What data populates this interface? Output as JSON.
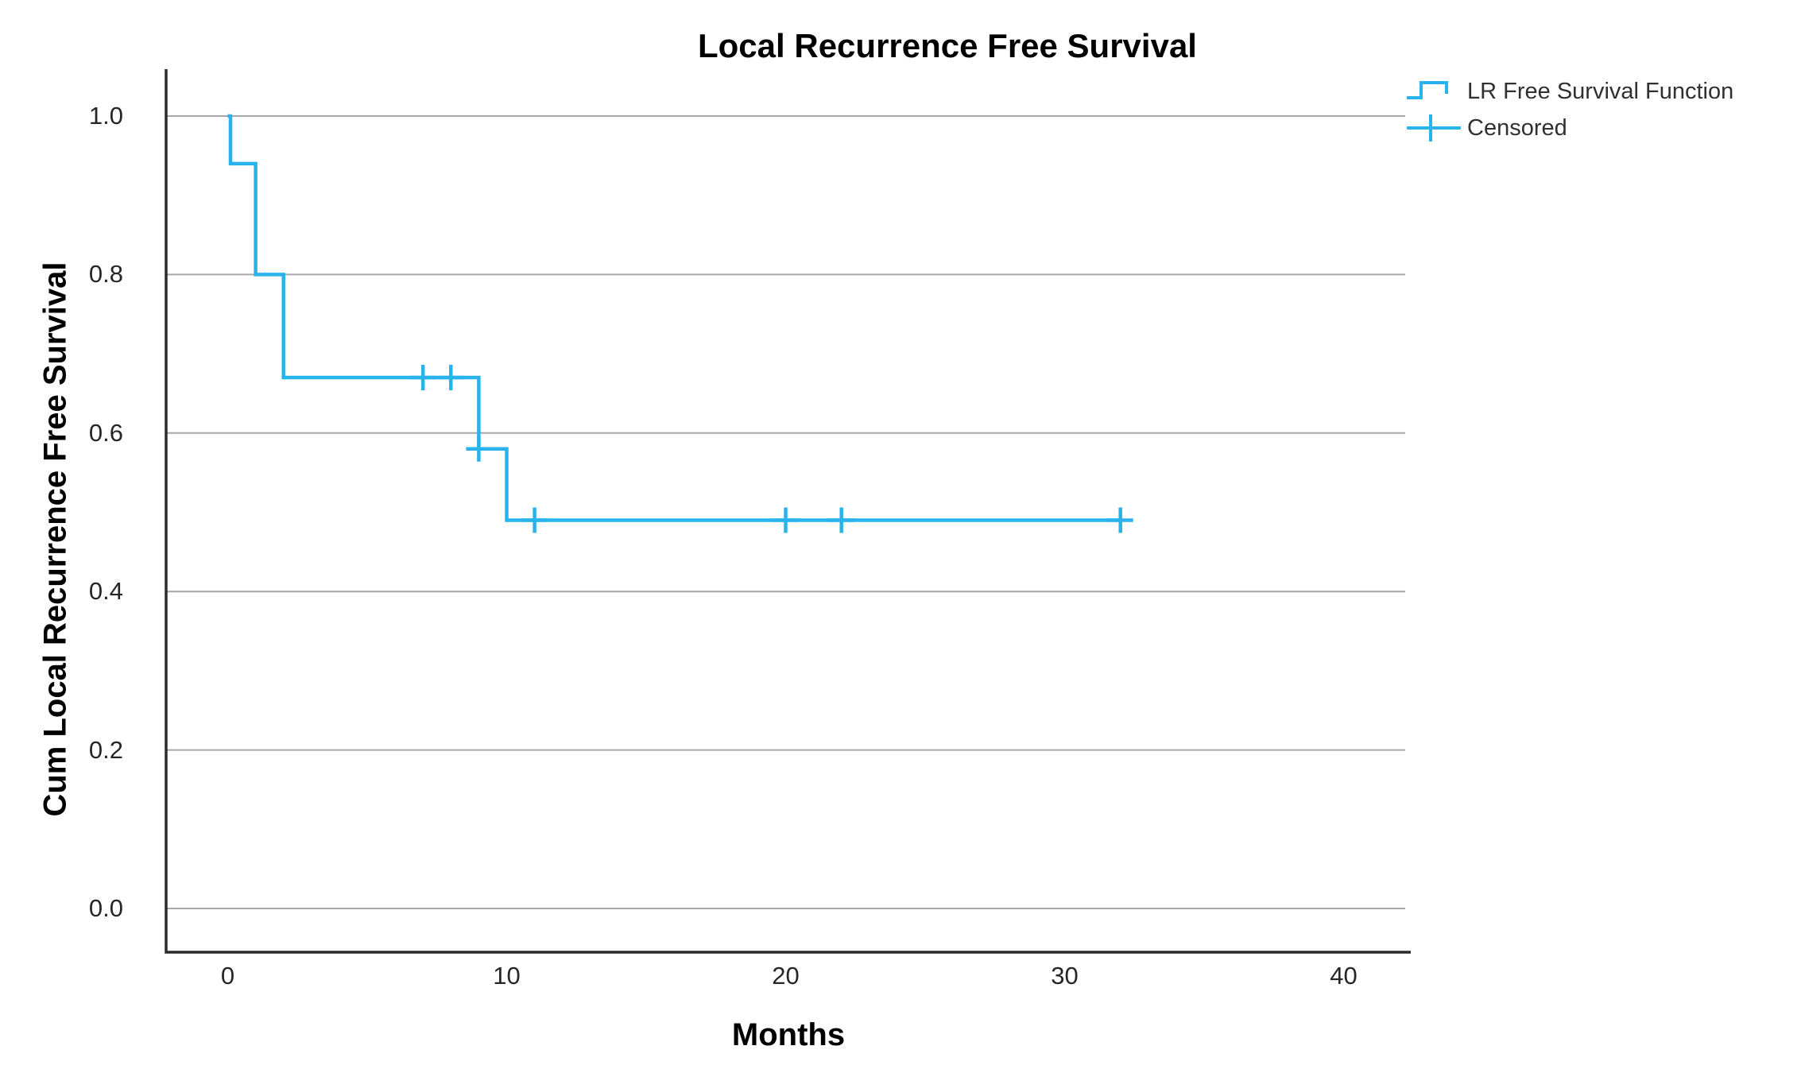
{
  "figure": {
    "background": "#ffffff"
  },
  "chart_data": {
    "type": "line",
    "subtype": "kaplan-meier-step",
    "title": "Local Recurrence Free Survival",
    "xlabel": "Months",
    "ylabel": "Cum Local Recurrence Free Survival",
    "grid": "horizontal",
    "legend_position": "top-right-outside",
    "xlim": [
      -2.2,
      42.4
    ],
    "ylim": [
      -0.055,
      1.06
    ],
    "xticks": [
      {
        "value": 0,
        "label": "0"
      },
      {
        "value": 10,
        "label": "10"
      },
      {
        "value": 20,
        "label": "20"
      },
      {
        "value": 30,
        "label": "30"
      },
      {
        "value": 40,
        "label": "40"
      }
    ],
    "yticks": [
      {
        "value": 0.0,
        "label": "0.0"
      },
      {
        "value": 0.2,
        "label": "0.2"
      },
      {
        "value": 0.4,
        "label": "0.4"
      },
      {
        "value": 0.6,
        "label": "0.6"
      },
      {
        "value": 0.8,
        "label": "0.8"
      },
      {
        "value": 1.0,
        "label": "1.0"
      }
    ],
    "series": [
      {
        "name": "LR Free Survival Function",
        "color": "#29B3EC",
        "step_points": [
          [
            0,
            1.0
          ],
          [
            0.1,
            1.0
          ],
          [
            0.1,
            0.94
          ],
          [
            1,
            0.94
          ],
          [
            1,
            0.8
          ],
          [
            2,
            0.8
          ],
          [
            2,
            0.67
          ],
          [
            9,
            0.67
          ],
          [
            9,
            0.58
          ],
          [
            10,
            0.58
          ],
          [
            10,
            0.49
          ],
          [
            32,
            0.49
          ]
        ]
      }
    ],
    "censored": {
      "name": "Censored",
      "color": "#29B3EC",
      "points": [
        [
          7,
          0.67
        ],
        [
          8,
          0.67
        ],
        [
          9,
          0.58
        ],
        [
          11,
          0.49
        ],
        [
          20,
          0.49
        ],
        [
          22,
          0.49
        ],
        [
          32,
          0.49
        ]
      ]
    }
  },
  "legend": {
    "series_label": "LR Free Survival Function",
    "censored_label": "Censored"
  },
  "colors": {
    "curve": "#29B3EC",
    "gridline": "#A6A6A6",
    "axis_frame": "#2B2B2B",
    "tick_text": "#262626",
    "title_text": "#000000",
    "legend_text": "#303030"
  }
}
